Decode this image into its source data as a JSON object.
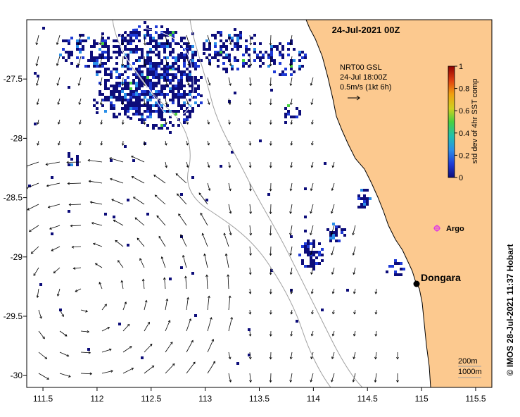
{
  "title": "24-Jul-2021 00Z",
  "vector_label": {
    "line1": "NRT00 GSL",
    "line2": "24-Jul 18:00Z",
    "line3": "0.5m/s (1kt 6h)"
  },
  "colorbar": {
    "label": "std dev of 4hr SST comp",
    "ticks": [
      "0",
      "0.2",
      "0.4",
      "0.6",
      "0.8",
      "1"
    ],
    "colors": [
      "#0d0d7a",
      "#1e3ad6",
      "#2a8fe8",
      "#20c0b0",
      "#48d040",
      "#d0d020",
      "#f0a010",
      "#e04010",
      "#900000"
    ]
  },
  "places": {
    "dongara": "Dongara",
    "argo": "Argo"
  },
  "depth_legend": {
    "d1": "200m",
    "d2": "1000m"
  },
  "credit": "© IMOS 28-Jul-2021 11:37 Hobart",
  "axes": {
    "x_ticks": [
      "111.5",
      "112",
      "112.5",
      "113",
      "113.5",
      "114",
      "114.5",
      "115",
      "115.5"
    ],
    "y_ticks": [
      "-27.5",
      "-28",
      "-28.5",
      "-29",
      "-29.5",
      "-30"
    ],
    "lon_range": [
      111.35,
      115.65
    ],
    "lat_range": [
      -30.1,
      -27.0
    ]
  },
  "colors": {
    "land": "#fcc98f",
    "ocean": "#ffffff",
    "sst_patch": "#0a128a",
    "argo": "#e040e0",
    "isobath": "#a0a0a0"
  }
}
